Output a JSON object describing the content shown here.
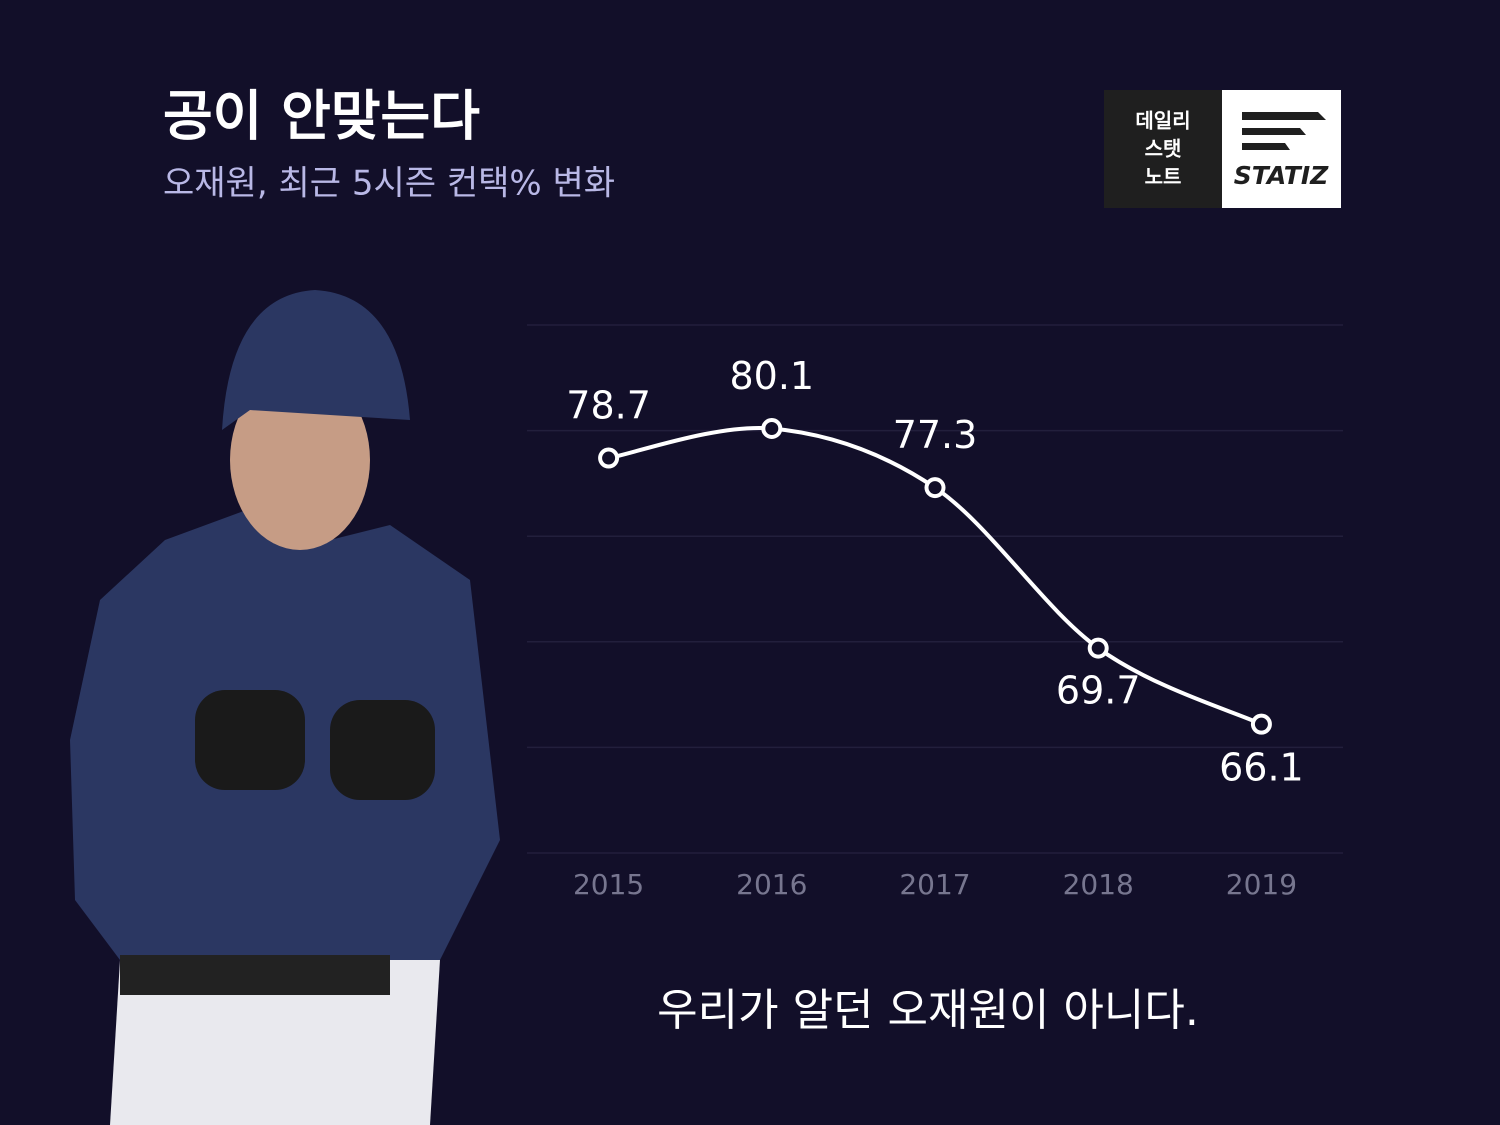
{
  "header": {
    "title": "공이 안맞는다",
    "subtitle": "오재원, 최근 5시즌 컨택% 변화"
  },
  "logo": {
    "lines": [
      "데일리",
      "스탯",
      "노트"
    ],
    "brand": "STATIZ"
  },
  "chart_data": {
    "type": "line",
    "categories": [
      "2015",
      "2016",
      "2017",
      "2018",
      "2019"
    ],
    "values": [
      78.7,
      80.1,
      77.3,
      69.7,
      66.1
    ],
    "color": "#ffffff",
    "ylim": [
      60,
      85
    ],
    "yticks": [
      60,
      65,
      70,
      75,
      80,
      85
    ],
    "grid": true
  },
  "caption": "우리가 알던 오재원이 아니다."
}
